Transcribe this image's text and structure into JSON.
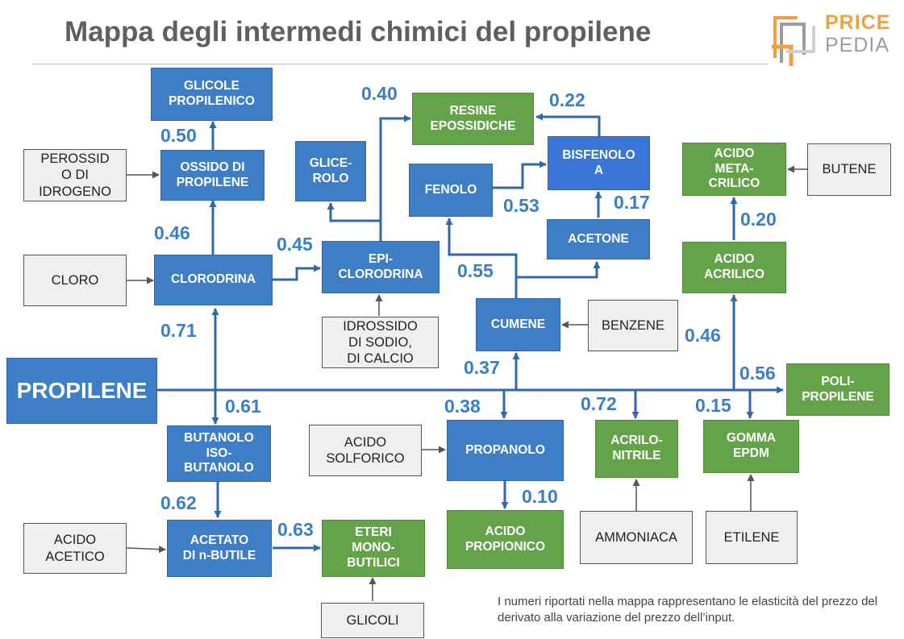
{
  "title": "Mappa degli intermedi chimici del propilene",
  "logo": {
    "line1": "PRICE",
    "line2": "PEDIA",
    "colors": {
      "orange": "#f2a13a",
      "gray": "#9c9c9c"
    }
  },
  "colors": {
    "blue_node": "#3d7ec6",
    "green_node": "#65a34b",
    "gray_node": "#efefef",
    "label": "#3a7fc5",
    "arrow_blue": "#2f6aa8",
    "arrow_gray": "#555555"
  },
  "nodes": {
    "glicole_propilenico": "GLICOLE\nPROPILENICO",
    "ossido_di_propilene": "OSSIDO DI\nPROPILENE",
    "perossido_di_idrogeno": "PEROSSID\nO DI\nIDROGENO",
    "clorodrina": "CLORODRINA",
    "cloro": "CLORO",
    "glicerolo": "GLICE-\nROLO",
    "epicloridrina": "EPI-\nCLORODRINA",
    "idrossido": "IDROSSIDO\nDI SODIO,\nDI CALCIO",
    "resine_epossidiche": "RESINE\nEPOSSIDICHE",
    "fenolo": "FENOLO",
    "bisfenolo_a": "BISFENOLO\nA",
    "acetone": "ACETONE",
    "cumene": "CUMENE",
    "benzene": "BENZENE",
    "acido_metacrilico": "ACIDO\nMETA-\nCRILICO",
    "butene": "BUTENE",
    "acido_acrilico": "ACIDO\nACRILICO",
    "polipropilene": "POLI-\nPROPILENE",
    "propilene": "PROPILENE",
    "butanolo": "BUTANOLO\nISO-\nBUTANOLO",
    "acido_solforico": "ACIDO\nSOLFORICO",
    "propanolo": "PROPANOLO",
    "acrilonitrile": "ACRILO-\nNITRILE",
    "gomma_epdm": "GOMMA\nEPDM",
    "acido_acetico": "ACIDO\nACETICO",
    "acetato_butile": "ACETATO\nDI n-BUTILE",
    "eteri": "ETERI\nMONO-\nBUTILICI",
    "acido_propionico": "ACIDO\nPROPIONICO",
    "ammoniaca": "AMMONIACA",
    "etilene": "ETILENE",
    "glicoli": "GLICOLI"
  },
  "elasticities": {
    "glicole": "0.50",
    "resine": "0.40",
    "bisfenolo_resine": "0.22",
    "ossido": "0.46",
    "epicloridrina": "0.45",
    "fenolo_bisfenolo": "0.53",
    "acetone_bisfenolo": "0.17",
    "metacrilico": "0.20",
    "cumene": "0.55",
    "clorodrina": "0.71",
    "acrilico": "0.46",
    "propilene_cumene": "0.37",
    "polipropilene": "0.56",
    "butanolo": "0.61",
    "propanolo": "0.38",
    "acrilonitrile": "0.72",
    "epdm": "0.15",
    "acetato": "0.62",
    "propionico": "0.10",
    "eteri": "0.63"
  },
  "footnote": "I numeri riportati nella mappa rappresentano le elasticità del prezzo del derivato alla variazione del prezzo dell’input."
}
